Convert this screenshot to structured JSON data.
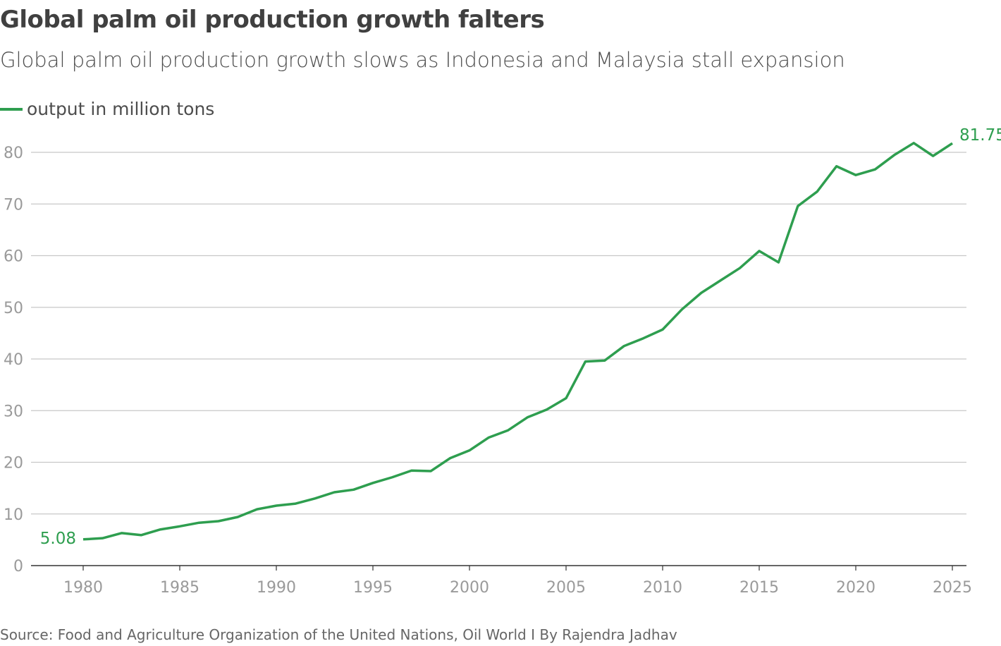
{
  "title": "Global palm oil production growth falters",
  "subtitle": "Global palm oil production growth slows as Indonesia and Malaysia stall expansion",
  "source": "Source: Food and Agriculture Organization of the United Nations, Oil World I By Rajendra Jadhav",
  "chart_data": {
    "type": "line",
    "legend_position": "top-left",
    "grid": true,
    "xlim": [
      1980,
      2025
    ],
    "ylim": [
      0,
      80
    ],
    "x_ticks": [
      1980,
      1985,
      1990,
      1995,
      2000,
      2005,
      2010,
      2015,
      2020,
      2025
    ],
    "y_ticks": [
      0,
      10,
      20,
      30,
      40,
      50,
      60,
      70,
      80
    ],
    "color": "#2e9e4f",
    "series": [
      {
        "name": "output in million tons",
        "x": [
          1980,
          1981,
          1982,
          1983,
          1984,
          1985,
          1986,
          1987,
          1988,
          1989,
          1990,
          1991,
          1992,
          1993,
          1994,
          1995,
          1996,
          1997,
          1998,
          1999,
          2000,
          2001,
          2002,
          2003,
          2004,
          2005,
          2006,
          2007,
          2008,
          2009,
          2010,
          2011,
          2012,
          2013,
          2014,
          2015,
          2016,
          2017,
          2018,
          2019,
          2020,
          2021,
          2022,
          2023,
          2024,
          2025
        ],
        "values": [
          5.08,
          5.3,
          6.3,
          5.9,
          7.0,
          7.6,
          8.3,
          8.6,
          9.4,
          10.9,
          11.6,
          12.0,
          13.0,
          14.2,
          14.7,
          16.0,
          17.1,
          18.4,
          18.3,
          20.8,
          22.3,
          24.8,
          26.2,
          28.7,
          30.2,
          32.4,
          39.5,
          39.7,
          42.5,
          44.0,
          45.7,
          49.6,
          52.8,
          55.2,
          57.6,
          60.9,
          58.7,
          69.6,
          72.4,
          77.3,
          75.6,
          76.7,
          79.5,
          81.8,
          79.3,
          81.75
        ]
      }
    ],
    "annotations": {
      "start": "5.08",
      "end": "81.75"
    }
  }
}
